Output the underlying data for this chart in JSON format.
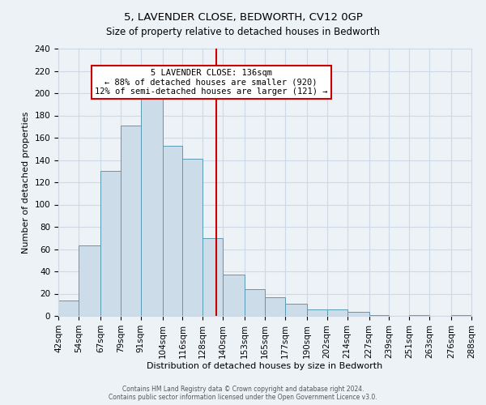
{
  "title": "5, LAVENDER CLOSE, BEDWORTH, CV12 0GP",
  "subtitle": "Size of property relative to detached houses in Bedworth",
  "xlabel": "Distribution of detached houses by size in Bedworth",
  "ylabel": "Number of detached properties",
  "bin_labels": [
    "42sqm",
    "54sqm",
    "67sqm",
    "79sqm",
    "91sqm",
    "104sqm",
    "116sqm",
    "128sqm",
    "140sqm",
    "153sqm",
    "165sqm",
    "177sqm",
    "190sqm",
    "202sqm",
    "214sqm",
    "227sqm",
    "239sqm",
    "251sqm",
    "263sqm",
    "276sqm",
    "288sqm"
  ],
  "bin_edges": [
    42,
    54,
    67,
    79,
    91,
    104,
    116,
    128,
    140,
    153,
    165,
    177,
    190,
    202,
    214,
    227,
    239,
    251,
    263,
    276,
    288
  ],
  "bar_heights": [
    14,
    63,
    130,
    171,
    200,
    153,
    141,
    70,
    37,
    24,
    17,
    11,
    6,
    6,
    4,
    1,
    0,
    1,
    0,
    1
  ],
  "bar_color": "#ccdce8",
  "bar_edge_color": "#5b9ab5",
  "property_line_x": 136,
  "property_line_label": "5 LAVENDER CLOSE: 136sqm",
  "annotation_line1": "← 88% of detached houses are smaller (920)",
  "annotation_line2": "12% of semi-detached houses are larger (121) →",
  "annotation_box_color": "#ffffff",
  "annotation_box_edge": "#cc0000",
  "vline_color": "#cc0000",
  "ylim": [
    0,
    240
  ],
  "yticks": [
    0,
    20,
    40,
    60,
    80,
    100,
    120,
    140,
    160,
    180,
    200,
    220,
    240
  ],
  "footer1": "Contains HM Land Registry data © Crown copyright and database right 2024.",
  "footer2": "Contains public sector information licensed under the Open Government Licence v3.0.",
  "bg_color": "#edf2f7",
  "grid_color": "#cddae6",
  "title_fontsize": 9.5,
  "subtitle_fontsize": 8.5,
  "axis_label_fontsize": 8.0,
  "tick_fontsize": 7.5,
  "footer_fontsize": 5.5
}
